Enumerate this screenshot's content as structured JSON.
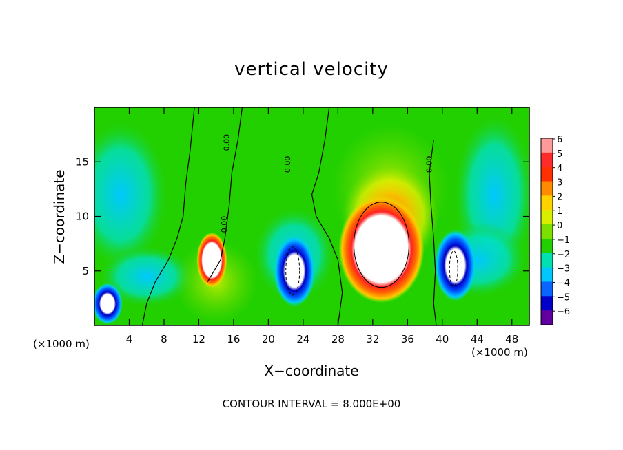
{
  "chart_data": {
    "type": "heatmap",
    "title": "vertical velocity",
    "xlabel": "X−coordinate",
    "ylabel": "Z−coordinate",
    "x_unit_left": "(×1000 m)",
    "x_unit_right": "(×1000 m)",
    "xlim": [
      0,
      50
    ],
    "ylim": [
      0,
      20
    ],
    "x_ticks": [
      4,
      8,
      12,
      16,
      20,
      24,
      28,
      32,
      36,
      40,
      44,
      48
    ],
    "y_ticks": [
      5,
      10,
      15
    ],
    "colorbar": {
      "values": [
        6,
        5,
        4,
        3,
        2,
        1,
        0,
        -1,
        -2,
        -3,
        -4,
        -5,
        -6
      ],
      "labels": [
        "6",
        "5",
        "4",
        "3",
        "2",
        "1",
        "0",
        "−1",
        "−2",
        "−3",
        "−4",
        "−5",
        "−6"
      ],
      "colors": [
        "#ff9a9a",
        "#ff2a2a",
        "#ff3000",
        "#ff8c00",
        "#ffd200",
        "#d8f000",
        "#7ce000",
        "#22d000",
        "#00e0b0",
        "#00c8ff",
        "#0a64ff",
        "#0000c8",
        "#6000a0"
      ]
    },
    "contour_labels": [
      "0.00",
      "0.00",
      "0.00",
      "0.00"
    ],
    "contour_interval_text": "CONTOUR INTERVAL = 8.000E+00",
    "features": [
      {
        "name": "main updraft",
        "x": 33,
        "z": 7,
        "w": 12
      },
      {
        "name": "updraft",
        "x": 13.5,
        "z": 6,
        "w": 9
      },
      {
        "name": "downdraft",
        "x": 23,
        "z": 5,
        "w": -8
      },
      {
        "name": "downdraft",
        "x": 41.5,
        "z": 5.5,
        "w": -8
      },
      {
        "name": "downdraft",
        "x": 1.5,
        "z": 2,
        "w": -8
      }
    ]
  }
}
